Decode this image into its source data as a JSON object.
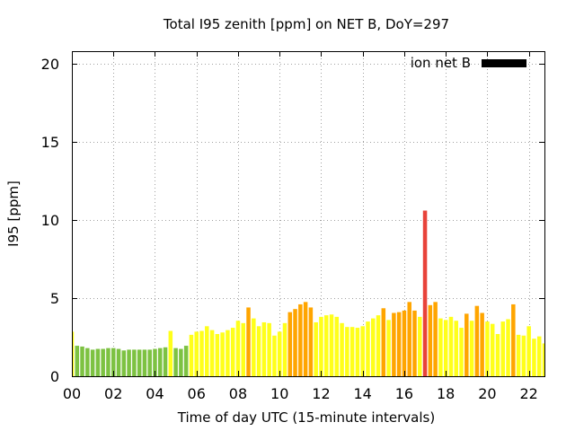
{
  "chart_data": {
    "type": "bar",
    "title": "Total I95 zenith [ppm] on NET B, DoY=297",
    "xlabel": "Time of day UTC (15-minute intervals)",
    "ylabel": "I95 [ppm]",
    "xlim": [
      0,
      22.75
    ],
    "ylim": [
      0,
      20.8
    ],
    "x_ticks": [
      {
        "value": 0,
        "label": "00"
      },
      {
        "value": 2,
        "label": "02"
      },
      {
        "value": 4,
        "label": "04"
      },
      {
        "value": 6,
        "label": "06"
      },
      {
        "value": 8,
        "label": "08"
      },
      {
        "value": 10,
        "label": "10"
      },
      {
        "value": 12,
        "label": "12"
      },
      {
        "value": 14,
        "label": "14"
      },
      {
        "value": 16,
        "label": "16"
      },
      {
        "value": 18,
        "label": "18"
      },
      {
        "value": 20,
        "label": "20"
      },
      {
        "value": 22,
        "label": "22"
      }
    ],
    "y_ticks": [
      {
        "value": 0,
        "label": "0"
      },
      {
        "value": 5,
        "label": "5"
      },
      {
        "value": 10,
        "label": "10"
      },
      {
        "value": 15,
        "label": "15"
      },
      {
        "value": 20,
        "label": "20"
      }
    ],
    "grid": true,
    "legend": {
      "label": "ion net B",
      "position": "top-right",
      "color": "#000000"
    },
    "interval_hours": 0.25,
    "colors": {
      "low": "#7dc242",
      "mid": "#ffff1a",
      "high": "#ffa500",
      "extreme": "#e8433a"
    },
    "thresholds": {
      "low_below": 2.0,
      "mid_below": 4.0,
      "high_below": 8.0
    },
    "values": [
      2.85,
      1.95,
      1.9,
      1.8,
      1.7,
      1.75,
      1.75,
      1.8,
      1.8,
      1.75,
      1.65,
      1.7,
      1.7,
      1.7,
      1.7,
      1.7,
      1.75,
      1.8,
      1.85,
      2.9,
      1.8,
      1.75,
      1.95,
      2.65,
      2.85,
      2.9,
      3.2,
      2.95,
      2.7,
      2.8,
      2.95,
      3.1,
      3.55,
      3.4,
      4.4,
      3.7,
      3.2,
      3.45,
      3.4,
      2.6,
      2.85,
      3.4,
      4.1,
      4.3,
      4.6,
      4.75,
      4.4,
      3.45,
      3.8,
      3.9,
      3.95,
      3.8,
      3.4,
      3.15,
      3.15,
      3.1,
      3.2,
      3.5,
      3.7,
      3.9,
      4.35,
      3.6,
      4.05,
      4.1,
      4.2,
      4.75,
      4.2,
      3.8,
      10.6,
      4.55,
      4.75,
      3.7,
      3.6,
      3.8,
      3.55,
      3.1,
      4.0,
      3.55,
      4.5,
      4.05,
      3.5,
      3.35,
      2.7,
      3.5,
      3.65,
      4.6,
      2.65,
      2.6,
      3.2,
      2.4,
      2.55,
      2.1
    ]
  }
}
